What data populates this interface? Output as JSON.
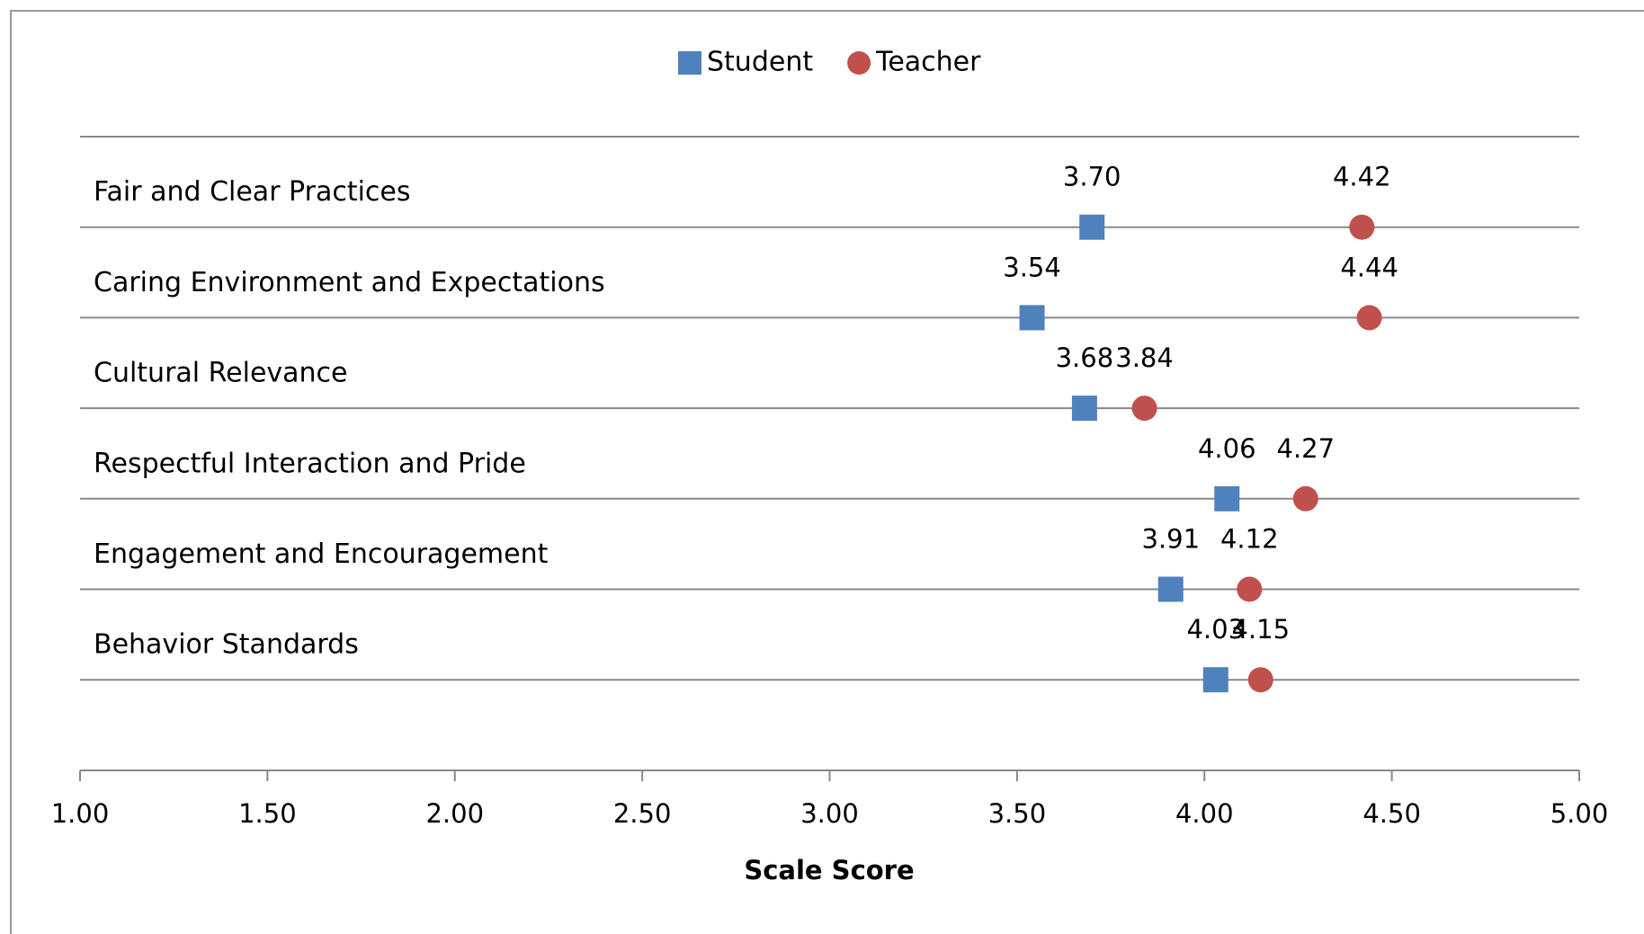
{
  "chart_data": {
    "type": "dot",
    "categories": [
      "Fair and Clear Practices",
      "Caring Environment and Expectations",
      "Cultural Relevance",
      "Respectful Interaction and Pride",
      "Engagement and Encouragement",
      "Behavior Standards"
    ],
    "series": [
      {
        "name": "Student",
        "color": "#4f81bd",
        "marker": "square",
        "values": [
          3.7,
          3.54,
          3.68,
          4.06,
          3.91,
          4.03
        ],
        "value_labels": [
          "3.70",
          "3.54",
          "3.68",
          "4.06",
          "3.91",
          "4.03"
        ]
      },
      {
        "name": "Teacher",
        "color": "#c0504d",
        "marker": "circle",
        "values": [
          4.42,
          4.44,
          3.84,
          4.27,
          4.12,
          4.15
        ],
        "value_labels": [
          "4.42",
          "4.44",
          "3.84",
          "4.27",
          "4.12",
          "4.15"
        ]
      }
    ],
    "xlabel": "Scale Score",
    "xlim": [
      1,
      5
    ],
    "xticks": [
      {
        "value": 1,
        "label": "1.00"
      },
      {
        "value": 1.5,
        "label": "1.50"
      },
      {
        "value": 2,
        "label": "2.00"
      },
      {
        "value": 2.5,
        "label": "2.50"
      },
      {
        "value": 3,
        "label": "3.00"
      },
      {
        "value": 3.5,
        "label": "3.50"
      },
      {
        "value": 4,
        "label": "4.00"
      },
      {
        "value": 4.5,
        "label": "4.50"
      },
      {
        "value": 5,
        "label": "5.00"
      }
    ],
    "legend": "top",
    "grid": false
  }
}
